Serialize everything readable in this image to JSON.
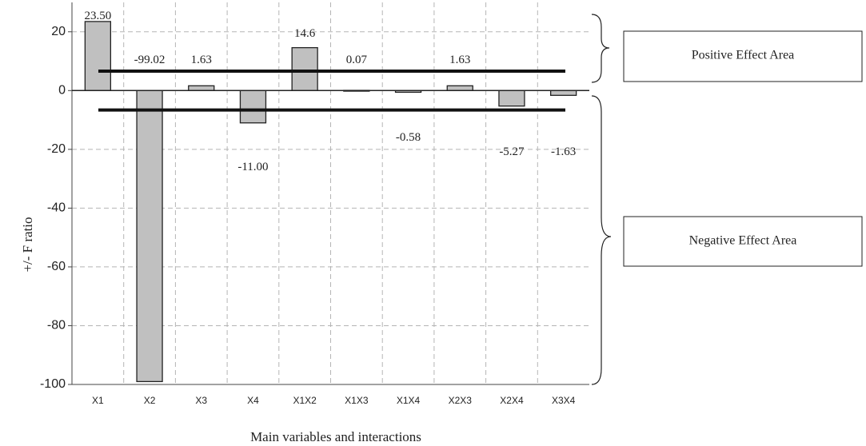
{
  "chart_data": {
    "type": "bar",
    "categories": [
      "X1",
      "X2",
      "X3",
      "X4",
      "X1X2",
      "X1X3",
      "X1X4",
      "X2X3",
      "X2X4",
      "X3X4"
    ],
    "values": [
      23.5,
      -99.02,
      1.63,
      -11.0,
      14.6,
      0.07,
      -0.58,
      1.63,
      -5.27,
      -1.63
    ],
    "data_labels": [
      "23.50",
      "-99.02",
      "1.63",
      "-11.00",
      "14.6",
      "0.07",
      "-0.58",
      "1.63",
      "-5.27",
      "-1.63"
    ],
    "xlabel": "Main variables and interactions",
    "ylabel": "+/- F ratio",
    "ylim": [
      -100,
      30
    ],
    "yticks": [
      20,
      0,
      -20,
      -40,
      -60,
      -80,
      -100
    ],
    "threshold_lines": [
      6.6,
      -6.6
    ],
    "grid": true,
    "bar_color": "#c0c0c0",
    "annotations": {
      "positive": "Positive Effect Area",
      "negative": "Negative Effect Area"
    }
  }
}
